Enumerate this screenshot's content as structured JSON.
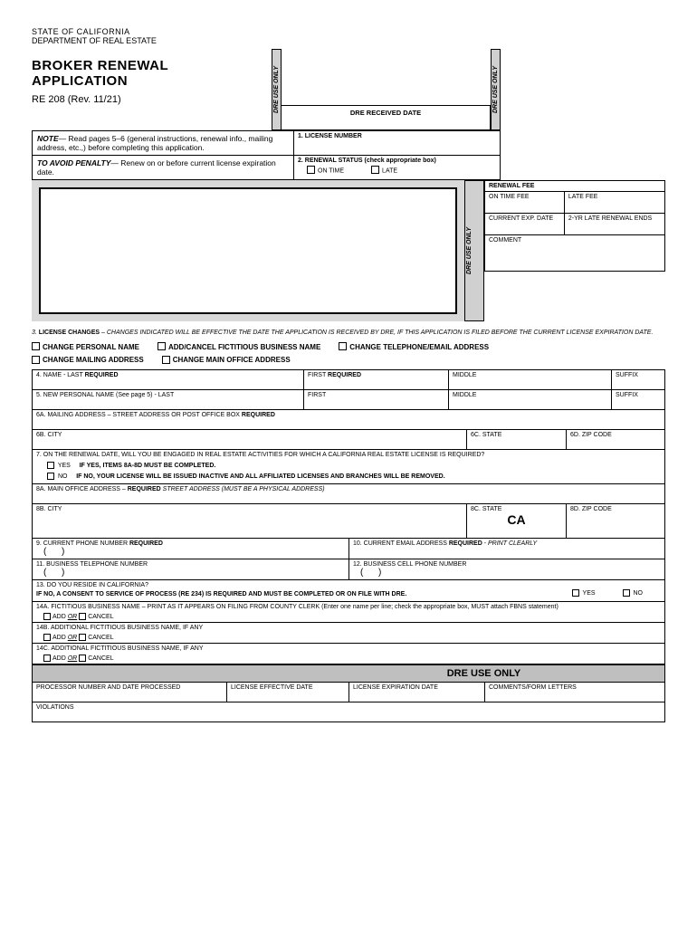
{
  "header": {
    "state": "STATE OF CALIFORNIA",
    "dept": "DEPARTMENT OF REAL ESTATE",
    "title": "BROKER RENEWAL APPLICATION",
    "rev": "RE 208 (Rev. 11/21)"
  },
  "dre_use_only": "DRE USE ONLY",
  "received_date": "DRE RECEIVED DATE",
  "note": {
    "title": "NOTE",
    "text": "— Read pages 5–6 (general instructions, renewal info., mailing address, etc.,) before completing this application."
  },
  "penalty": {
    "title": "TO AVOID PENALTY",
    "text": "— Renew on or before current license expiration date."
  },
  "field1": "1. LICENSE NUMBER",
  "field2": {
    "label": "2. RENEWAL STATUS (check appropriate box)",
    "opt1": "ON TIME",
    "opt2": "LATE"
  },
  "renewal_fee": {
    "head": "RENEWAL FEE",
    "r1a": "ON TIME FEE",
    "r1b": "LATE FEE",
    "r2a": "CURRENT EXP. DATE",
    "r2b": "2-YR LATE RENEWAL ENDS",
    "r3": "COMMENT"
  },
  "section3": {
    "label": "3.",
    "bold": "LICENSE CHANGES",
    "text": " – CHANGES INDICATED WILL BE EFFECTIVE THE DATE THE APPLICATION IS RECEIVED BY DRE, IF THIS APPLICATION IS FILED BEFORE THE CURRENT LICENSE EXPIRATION DATE."
  },
  "changes": [
    "CHANGE PERSONAL NAME",
    "ADD/CANCEL FICTITIOUS BUSINESS NAME",
    "CHANGE TELEPHONE/EMAIL ADDRESS",
    "CHANGE MAILING ADDRESS",
    "CHANGE MAIN OFFICE ADDRESS"
  ],
  "name_row": {
    "last": "4. NAME - LAST REQUIRED",
    "first": "FIRST REQUIRED",
    "middle": "MIDDLE",
    "suffix": "SUFFIX"
  },
  "new_name_row": {
    "last": "5. NEW PERSONAL NAME (See page 5) - LAST",
    "first": "FIRST",
    "middle": "MIDDLE",
    "suffix": "SUFFIX"
  },
  "mail6a": "6A. MAILING ADDRESS – STREET ADDRESS OR POST OFFICE BOX REQUIRED",
  "mail6b": "6B. CITY",
  "mail6c": "6C. STATE",
  "mail6d": "6D. ZIP CODE",
  "q7": {
    "text": "7. ON THE RENEWAL DATE, WILL YOU BE ENGAGED IN REAL ESTATE ACTIVITIES FOR WHICH A CALIFORNIA REAL ESTATE LICENSE IS REQUIRED?",
    "yes": "YES",
    "yes_note": "IF YES, ITEMS 8A-8D MUST BE COMPLETED.",
    "no": "NO",
    "no_note": "IF NO, YOUR LICENSE WILL BE ISSUED INACTIVE AND ALL AFFILIATED LICENSES AND BRANCHES WILL BE REMOVED."
  },
  "office8a": "8A. MAIN OFFICE ADDRESS – REQUIRED STREET ADDRESS (MUST BE A PHYSICAL ADDRESS)",
  "office8b": "8B. CITY",
  "office8c": "8C. STATE",
  "office8c_val": "CA",
  "office8d": "8D. ZIP CODE",
  "phone9": "9. CURRENT PHONE NUMBER REQUIRED",
  "email10": "10. CURRENT EMAIL ADDRESS REQUIRED - PRINT CLEARLY",
  "phone11": "11. BUSINESS TELEPHONE NUMBER",
  "phone12": "12. BUSINESS CELL PHONE NUMBER",
  "q13": {
    "label": "13. DO YOU RESIDE IN CALIFORNIA?",
    "note": "IF NO, A CONSENT TO SERVICE OF PROCESS (RE 234) IS REQUIRED AND MUST BE COMPLETED OR ON FILE WITH DRE.",
    "yes": "YES",
    "no": "NO"
  },
  "q14a": {
    "label": "14A. FICTITIOUS BUSINESS NAME – PRINT AS IT APPEARS ON FILING FROM COUNTY CLERK (Enter one name per line; check the appropriate box, MUST attach FBNS statement)",
    "add": "ADD",
    "or": "OR",
    "cancel": "CANCEL"
  },
  "q14b": "14B.  ADDITIONAL FICTITIOUS BUSINESS NAME, IF ANY",
  "q14c": "14C.  ADDITIONAL FICTITIOUS BUSINESS NAME, IF ANY",
  "dre_banner": "DRE USE ONLY",
  "bottom": {
    "c1": "PROCESSOR NUMBER AND DATE PROCESSED",
    "c2": "LICENSE EFFECTIVE DATE",
    "c3": "LICENSE EXPIRATION DATE",
    "c4": "COMMENTS/FORM LETTERS",
    "violations": "VIOLATIONS"
  }
}
